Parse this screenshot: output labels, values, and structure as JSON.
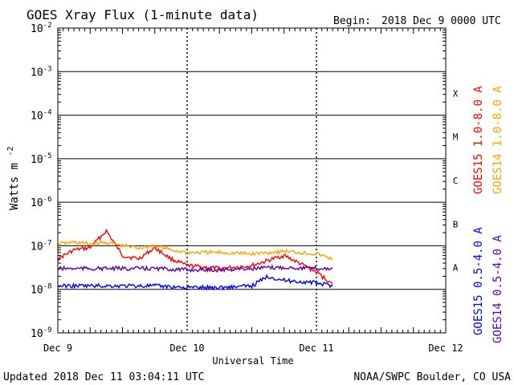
{
  "header": {
    "title": "GOES Xray Flux (1-minute data)",
    "begin_label": "Begin:",
    "begin_value": "2018 Dec 9 0000 UTC"
  },
  "footer": {
    "updated": "Updated 2018 Dec 11 03:04:11 UTC",
    "credit": "NOAA/SWPC Boulder, CO USA"
  },
  "chart_data": {
    "type": "line",
    "ylabel": "Watts m",
    "ylabel_exp": "-2",
    "xlabel": "Universal Time",
    "yscale": "log",
    "ylim": [
      1e-09,
      0.01
    ],
    "y_ticks": [
      {
        "value": 0.01,
        "base": "10",
        "exp": "-2"
      },
      {
        "value": 0.001,
        "base": "10",
        "exp": "-3"
      },
      {
        "value": 0.0001,
        "base": "10",
        "exp": "-4"
      },
      {
        "value": 1e-05,
        "base": "10",
        "exp": "-5"
      },
      {
        "value": 1e-06,
        "base": "10",
        "exp": "-6"
      },
      {
        "value": 1e-07,
        "base": "10",
        "exp": "-7"
      },
      {
        "value": 1e-08,
        "base": "10",
        "exp": "-8"
      },
      {
        "value": 1e-09,
        "base": "10",
        "exp": "-9"
      }
    ],
    "x_ticks": [
      "Dec 9",
      "Dec 10",
      "Dec 11",
      "Dec 12"
    ],
    "flare_classes": [
      "X",
      "M",
      "C",
      "B",
      "A"
    ],
    "grid": true,
    "legend_placement": "right",
    "series": [
      {
        "name": "GOES15 1.0-8.0 A",
        "color": "#ff0000",
        "x": [
          "2018-12-09 00:00",
          "2018-12-09 03:00",
          "2018-12-09 06:00",
          "2018-12-09 09:00",
          "2018-12-09 12:00",
          "2018-12-09 15:00",
          "2018-12-09 18:00",
          "2018-12-09 21:00",
          "2018-12-10 00:00",
          "2018-12-10 06:00",
          "2018-12-10 12:00",
          "2018-12-10 18:00",
          "2018-12-11 00:00",
          "2018-12-11 03:00"
        ],
        "values": [
          5e-08,
          8e-08,
          9e-08,
          2.2e-07,
          6e-08,
          5e-08,
          9e-08,
          5e-08,
          3.5e-08,
          3e-08,
          3.5e-08,
          6e-08,
          2.5e-08,
          1.3e-08
        ]
      },
      {
        "name": "GOES14 1.0-8.0 A",
        "color": "#ffa500",
        "x": [
          "2018-12-09 00:00",
          "2018-12-09 03:00",
          "2018-12-09 06:00",
          "2018-12-09 09:00",
          "2018-12-09 12:00",
          "2018-12-09 15:00",
          "2018-12-09 18:00",
          "2018-12-09 21:00",
          "2018-12-10 00:00",
          "2018-12-10 06:00",
          "2018-12-10 12:00",
          "2018-12-10 18:00",
          "2018-12-11 00:00",
          "2018-12-11 03:00"
        ],
        "values": [
          1.1e-07,
          1.2e-07,
          1.1e-07,
          1.2e-07,
          1e-07,
          9e-08,
          1e-07,
          8e-08,
          7e-08,
          7e-08,
          6.5e-08,
          7.5e-08,
          6.5e-08,
          5e-08
        ]
      },
      {
        "name": "GOES15 0.5-4.0 A",
        "color": "#0000ff",
        "x": [
          "2018-12-09 00:00",
          "2018-12-09 06:00",
          "2018-12-09 12:00",
          "2018-12-09 18:00",
          "2018-12-10 00:00",
          "2018-12-10 06:00",
          "2018-12-10 12:00",
          "2018-12-10 15:00",
          "2018-12-10 18:00",
          "2018-12-10 21:00",
          "2018-12-11 00:00",
          "2018-12-11 03:00"
        ],
        "values": [
          1.2e-08,
          1.2e-08,
          1.2e-08,
          1.2e-08,
          1.1e-08,
          1.1e-08,
          1.2e-08,
          2e-08,
          1.6e-08,
          1.5e-08,
          1.4e-08,
          1.2e-08
        ]
      },
      {
        "name": "GOES14 0.5-4.0 A",
        "color": "#5a00a0",
        "x": [
          "2018-12-09 00:00",
          "2018-12-09 06:00",
          "2018-12-09 12:00",
          "2018-12-09 18:00",
          "2018-12-10 00:00",
          "2018-12-10 06:00",
          "2018-12-10 12:00",
          "2018-12-10 18:00",
          "2018-12-11 00:00",
          "2018-12-11 03:00"
        ],
        "values": [
          3e-08,
          3e-08,
          3e-08,
          3e-08,
          2.8e-08,
          2.8e-08,
          3e-08,
          3.2e-08,
          3e-08,
          3e-08
        ]
      }
    ]
  }
}
